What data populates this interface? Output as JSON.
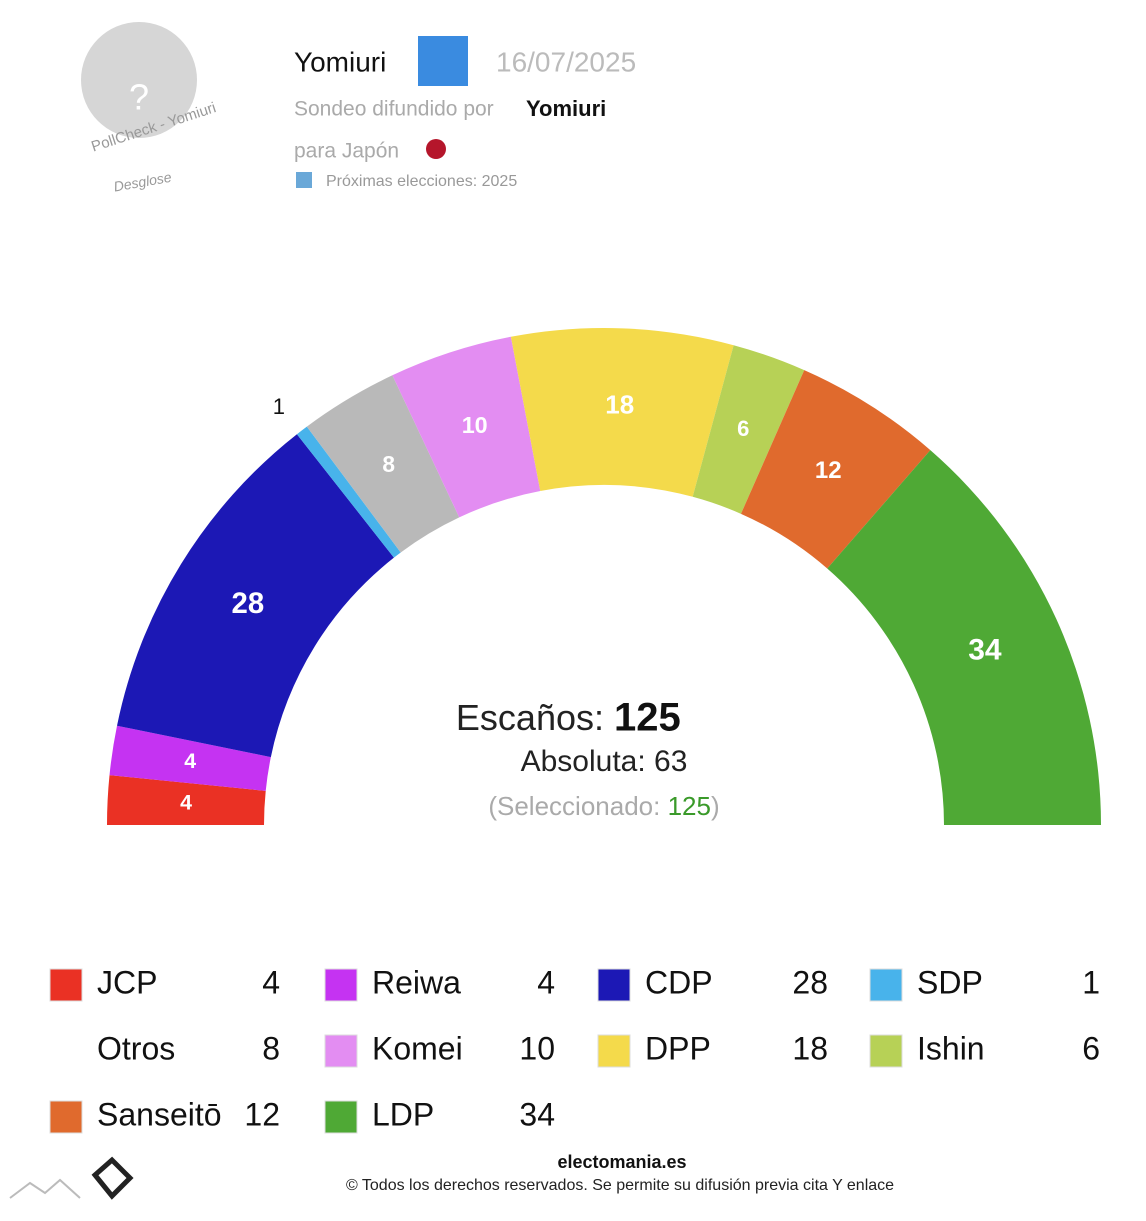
{
  "header": {
    "pollster": "Yomiuri",
    "date": "16/07/2025",
    "spread_label": "Sondeo difundido por",
    "spread_by": "Yomiuri",
    "country": "para Japón",
    "next_elections": "Próximas elecciones: 2025",
    "avatar": "?",
    "pollcheck": "PollCheck - Yomiuri",
    "breakdown": "Desglose"
  },
  "chart_data": {
    "type": "semicircle",
    "categories": [
      "JCP",
      "Reiwa",
      "CDP",
      "SDP",
      "Otros",
      "Komei",
      "DPP",
      "Ishin",
      "Sanseitō",
      "LDP"
    ],
    "values": [
      4,
      4,
      28,
      1,
      8,
      10,
      18,
      6,
      12,
      34
    ],
    "colors": [
      "#ea3124",
      "#c533f2",
      "#1c18b5",
      "#48b3eb",
      "#b9b9b9",
      "#e38df2",
      "#f4da4b",
      "#b7d156",
      "#e06a2d",
      "#4fa935"
    ],
    "seats_label": "Escaños:",
    "seats_total": 125,
    "majority_label": "Absoluta:",
    "majority": 63,
    "selected_open": "(Seleccionado:",
    "selected": 125,
    "selected_close": ")"
  },
  "footer": {
    "site": "electomania.es",
    "rights": "© Todos los derechos reservados. Se permite su difusión previa cita Y enlace"
  }
}
